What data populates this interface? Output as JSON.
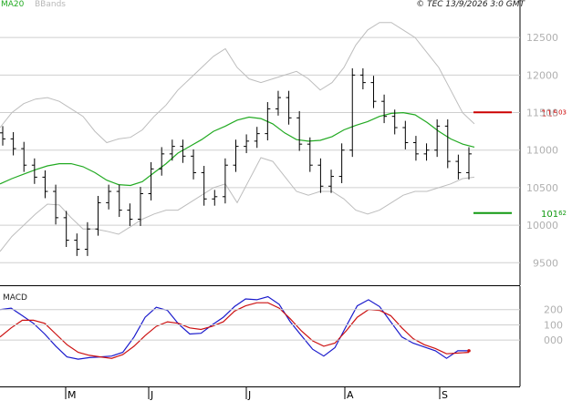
{
  "header": {
    "ma_label": "MA20",
    "bbands_label": "BBands",
    "copyright": "© TEC 13/9/2026 3:0 GMT"
  },
  "chart_data": [
    {
      "type": "line",
      "name": "price",
      "ylim": [
        9200,
        13000
      ],
      "yticks": [
        9500,
        10000,
        10500,
        11000,
        11500,
        12000,
        12500
      ],
      "ytick_labels": [
        "9500",
        "10000",
        "10500",
        "11000",
        "11500",
        "12000",
        "12500"
      ],
      "month_labels": [
        "M",
        "J",
        "J",
        "A",
        "S"
      ],
      "grid": true,
      "levels": [
        {
          "value": 11503,
          "label_main": "115",
          "label_dec": "03",
          "color": "#cc0000"
        },
        {
          "value": 10162,
          "label_main": "101",
          "label_dec": "62",
          "color": "#119911"
        }
      ],
      "series": [
        {
          "name": "MA20",
          "color": "#22aa22",
          "values": [
            10550,
            10620,
            10680,
            10740,
            10790,
            10820,
            10820,
            10780,
            10700,
            10600,
            10540,
            10530,
            10580,
            10700,
            10820,
            10960,
            11050,
            11140,
            11250,
            11320,
            11400,
            11440,
            11420,
            11350,
            11230,
            11140,
            11120,
            11130,
            11180,
            11270,
            11330,
            11380,
            11450,
            11490,
            11500,
            11470,
            11370,
            11250,
            11150,
            11080,
            11040
          ]
        },
        {
          "name": "BBands-upper",
          "color": "#bdbdbd",
          "values": [
            11300,
            11500,
            11620,
            11680,
            11700,
            11650,
            11550,
            11450,
            11250,
            11100,
            11150,
            11170,
            11270,
            11450,
            11600,
            11800,
            11950,
            12100,
            12250,
            12350,
            12100,
            11950,
            11900,
            11950,
            12000,
            12050,
            11950,
            11800,
            11900,
            12100,
            12400,
            12600,
            12700,
            12700,
            12600,
            12500,
            12300,
            12100,
            11800,
            11500,
            11350
          ]
        },
        {
          "name": "BBands-lower",
          "color": "#bdbdbd",
          "values": [
            9650,
            9850,
            10000,
            10150,
            10280,
            10270,
            10100,
            9950,
            9950,
            9920,
            9880,
            9980,
            10080,
            10150,
            10200,
            10200,
            10300,
            10400,
            10500,
            10550,
            10300,
            10600,
            10900,
            10850,
            10650,
            10450,
            10400,
            10450,
            10450,
            10350,
            10200,
            10150,
            10200,
            10300,
            10400,
            10450,
            10450,
            10500,
            10550,
            10620,
            10640
          ]
        }
      ],
      "ohlc_close": [
        11150,
        11020,
        10800,
        10640,
        10450,
        10100,
        9800,
        9680,
        9950,
        10300,
        10450,
        10200,
        10080,
        10420,
        10750,
        10950,
        11050,
        10920,
        10700,
        10350,
        10380,
        10800,
        11050,
        11120,
        11220,
        11550,
        11700,
        11430,
        11080,
        10800,
        10520,
        10650,
        11000,
        12000,
        11900,
        11650,
        11450,
        11300,
        11100,
        10950,
        11000,
        11320,
        10850,
        10700,
        10950
      ]
    },
    {
      "type": "line",
      "name": "MACD",
      "title": "MACD",
      "ylim": [
        -280,
        330
      ],
      "yticks": [
        200,
        100,
        0
      ],
      "ytick_labels": [
        "200",
        "100",
        "000"
      ],
      "series": [
        {
          "name": "MACD",
          "color": "#1a1acc",
          "values": [
            200,
            210,
            160,
            110,
            40,
            -40,
            -110,
            -125,
            -115,
            -110,
            -105,
            -80,
            20,
            150,
            215,
            195,
            105,
            40,
            45,
            100,
            150,
            220,
            270,
            265,
            285,
            235,
            120,
            30,
            -60,
            -105,
            -50,
            90,
            225,
            265,
            220,
            120,
            20,
            -20,
            -45,
            -70,
            -120,
            -70,
            -70
          ]
        },
        {
          "name": "Signal",
          "color": "#cc1111",
          "values": [
            20,
            80,
            130,
            130,
            110,
            40,
            -30,
            -80,
            -100,
            -110,
            -120,
            -95,
            -40,
            30,
            90,
            120,
            110,
            80,
            70,
            90,
            120,
            190,
            225,
            245,
            245,
            210,
            140,
            60,
            -5,
            -40,
            -20,
            60,
            150,
            200,
            195,
            160,
            80,
            10,
            -30,
            -55,
            -90,
            -85,
            -80
          ]
        }
      ]
    }
  ]
}
